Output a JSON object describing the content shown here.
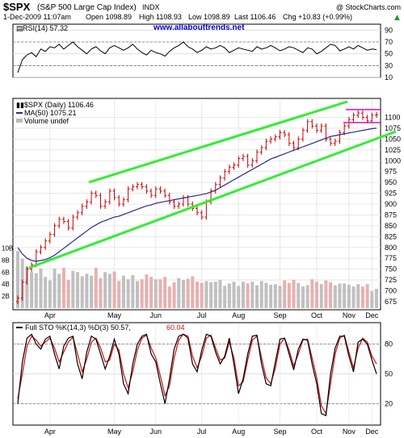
{
  "header": {
    "symbol": "$SPX",
    "name": "(S&P 500 Large Cap Index)",
    "exchange": "INDX",
    "copyright": "@ StockCharts.com",
    "date": "1-Dec-2009 11:07am",
    "open": "Open 1098.89",
    "high": "High 1108.93",
    "low": "Low 1098.89",
    "last": "Last 1106.46",
    "change": "Chg +10.83 (+0.99%)",
    "change_arrow": "▲"
  },
  "watermark": "www.allabouttrends.net",
  "colors": {
    "price_bar": "#cc0000",
    "ma": "#2a2a8a",
    "channel": "#33ee33",
    "box": "#e020c0",
    "volume_up": "#c0c0c0",
    "volume_down": "#e8b0b0",
    "stoch_k": "#000000",
    "stoch_d": "#d01010",
    "link": "#0000cc"
  },
  "chart_data": [
    {
      "type": "line",
      "panel": "RSI",
      "legend": "RSI(14) 57.32",
      "ylim": [
        10,
        100
      ],
      "yticks": [
        "90",
        "70",
        "50",
        "30",
        "10"
      ],
      "reference_lines": [
        70,
        30
      ],
      "series": [
        {
          "values": [
            18,
            40,
            48,
            52,
            45,
            58,
            54,
            62,
            60,
            66,
            58,
            64,
            70,
            62,
            56,
            50,
            58,
            62,
            55,
            50,
            60,
            64,
            60,
            56,
            60,
            66,
            58,
            52,
            48,
            56,
            52,
            50,
            46,
            54,
            60,
            64,
            70,
            62,
            58,
            52,
            56,
            62,
            58,
            60,
            64,
            60,
            52,
            56,
            60,
            58,
            56,
            54,
            62,
            58,
            60,
            64,
            60,
            55,
            58,
            62,
            60,
            56,
            52,
            60,
            58,
            50,
            54,
            60,
            66,
            64,
            55,
            58,
            62,
            58,
            64,
            60,
            56,
            58,
            57
          ]
        }
      ]
    },
    {
      "type": "bar",
      "panel": "Price",
      "legend": [
        "$SPX (Daily) 1106.46",
        "MA(50) 1075.21",
        "Volume undef"
      ],
      "x_ticks": [
        "Apr",
        "May",
        "Jun",
        "Jul",
        "Aug",
        "Sep",
        "Oct",
        "Nov",
        "Dec"
      ],
      "ylim": [
        660,
        1140
      ],
      "yticks": [
        "1100",
        "1075",
        "1050",
        "1025",
        "1000",
        "975",
        "950",
        "925",
        "900",
        "875",
        "850",
        "825",
        "800",
        "775",
        "750",
        "725",
        "700",
        "675"
      ],
      "volume_ticks": [
        "10B",
        "8B",
        "6B",
        "4B",
        "2B"
      ],
      "close_series": [
        {
          "values": [
            683,
            720,
            750,
            760,
            790,
            800,
            815,
            830,
            850,
            865,
            860,
            845,
            870,
            880,
            895,
            905,
            925,
            920,
            895,
            905,
            930,
            915,
            900,
            910,
            935,
            940,
            945,
            940,
            930,
            920,
            935,
            930,
            920,
            905,
            895,
            900,
            915,
            900,
            890,
            880,
            870,
            905,
            930,
            945,
            960,
            975,
            985,
            990,
            1005,
            1010,
            990,
            1000,
            1020,
            1030,
            1045,
            1050,
            1055,
            1065,
            1060,
            1040,
            1030,
            1050,
            1070,
            1090,
            1080,
            1070,
            1080,
            1050,
            1040,
            1045,
            1065,
            1080,
            1095,
            1105,
            1110,
            1100,
            1092,
            1105,
            1106
          ]
        },
        {
          "name": "MA(50)",
          "values": [
            800,
            785,
            775,
            770,
            768,
            770,
            772,
            776,
            782,
            790,
            798,
            806,
            814,
            822,
            830,
            838,
            846,
            852,
            858,
            862,
            866,
            870,
            872,
            876,
            880,
            884,
            888,
            892,
            896,
            898,
            902,
            904,
            906,
            908,
            910,
            912,
            914,
            916,
            918,
            920,
            922,
            924,
            928,
            932,
            938,
            944,
            950,
            956,
            962,
            968,
            974,
            980,
            986,
            992,
            998,
            1004,
            1008,
            1012,
            1016,
            1020,
            1024,
            1028,
            1032,
            1036,
            1040,
            1044,
            1048,
            1052,
            1056,
            1058,
            1060,
            1062,
            1064,
            1066,
            1068,
            1070,
            1072,
            1074,
            1075
          ]
        }
      ],
      "channel_lines": [
        {
          "from": {
            "x": "mid-Mar",
            "y": 745
          },
          "to": {
            "x": "Nov",
            "y": 1085
          }
        },
        {
          "from": {
            "x": "Apr",
            "y": 935
          },
          "to": {
            "x": "Nov",
            "y": 1140
          }
        }
      ],
      "box_lines": [
        1118,
        1088
      ],
      "volume_values": [
        9.5,
        8.2,
        6.9,
        6.0,
        5.8,
        6.6,
        5.2,
        4.6,
        6.6,
        5.7,
        6.7,
        4.7,
        6.2,
        6.0,
        5.3,
        5.7,
        5.4,
        6.7,
        5.0,
        6.0,
        5.7,
        6.1,
        4.5,
        5.4,
        4.8,
        5.5,
        4.5,
        4.8,
        5.6,
        5.2,
        4.8,
        4.8,
        5.2,
        3.6,
        4.3,
        5.0,
        4.7,
        4.9,
        5.3,
        4.4,
        4.2,
        4.5,
        4.3,
        4.4,
        4.7,
        3.7,
        4.1,
        4.4,
        3.7,
        4.4,
        4.1,
        4.4,
        3.8,
        4.5,
        4.2,
        3.9,
        4.0,
        3.7,
        4.6,
        4.2,
        4.7,
        4.2,
        3.6,
        3.8,
        4.8,
        4.4,
        4.0,
        4.6,
        4.3,
        3.8,
        4.1,
        4.1,
        3.9,
        3.6,
        4.0,
        3.6,
        4.0,
        2.8,
        3.2
      ]
    },
    {
      "type": "line",
      "panel": "Stochastics",
      "legend": {
        "prefix": "Full STO %K(14,3) %D(3) 50.57,",
        "d_value": "60.04"
      },
      "ylim": [
        0,
        100
      ],
      "yticks": [
        "80",
        "50",
        "20"
      ],
      "reference_lines": [
        80,
        20
      ],
      "series": [
        {
          "name": "%K",
          "values": [
            20,
            62,
            86,
            90,
            80,
            75,
            85,
            88,
            70,
            55,
            78,
            86,
            88,
            60,
            45,
            72,
            88,
            85,
            70,
            55,
            68,
            85,
            70,
            40,
            30,
            60,
            80,
            88,
            90,
            70,
            62,
            40,
            20,
            45,
            75,
            88,
            90,
            86,
            60,
            52,
            74,
            90,
            88,
            72,
            60,
            68,
            86,
            60,
            30,
            45,
            70,
            88,
            89,
            60,
            40,
            38,
            62,
            85,
            86,
            70,
            54,
            75,
            85,
            84,
            60,
            40,
            10,
            8,
            50,
            76,
            88,
            88,
            68,
            52,
            82,
            85,
            80,
            64,
            50
          ]
        },
        {
          "name": "%D",
          "values": [
            25,
            50,
            78,
            88,
            84,
            78,
            82,
            86,
            76,
            62,
            72,
            82,
            87,
            70,
            52,
            65,
            82,
            86,
            76,
            62,
            64,
            80,
            74,
            50,
            36,
            52,
            74,
            86,
            89,
            76,
            66,
            48,
            28,
            38,
            66,
            84,
            90,
            88,
            68,
            56,
            68,
            86,
            89,
            76,
            64,
            66,
            82,
            66,
            38,
            42,
            64,
            84,
            88,
            66,
            46,
            40,
            56,
            80,
            86,
            74,
            58,
            70,
            84,
            85,
            66,
            46,
            18,
            10,
            40,
            70,
            86,
            89,
            72,
            56,
            76,
            86,
            82,
            68,
            60
          ]
        }
      ],
      "x_ticks": [
        "Apr",
        "May",
        "Jun",
        "Jul",
        "Aug",
        "Sep",
        "Oct",
        "Nov",
        "Dec"
      ]
    }
  ]
}
